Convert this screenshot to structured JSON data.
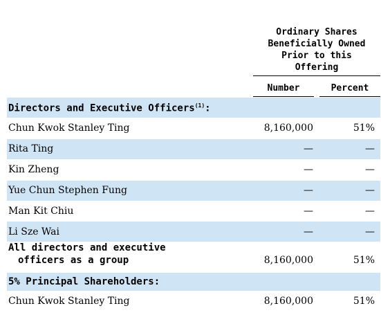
{
  "header": {
    "line1": "Ordinary Shares",
    "line2": "Beneficially Owned",
    "line3": "Prior to this",
    "line4": "Offering"
  },
  "columns": {
    "number": "Number",
    "percent": "Percent"
  },
  "sections": {
    "directors_title": "Directors and Executive Officers",
    "directors_note": "(1)",
    "directors_colon": ":",
    "principal_title": "5% Principal Shareholders:"
  },
  "rows": [
    {
      "name": "Chun Kwok Stanley Ting",
      "number": "8,160,000",
      "percent": "51%"
    },
    {
      "name": "Rita Ting",
      "number": "—",
      "percent": "—"
    },
    {
      "name": "Kin Zheng",
      "number": "—",
      "percent": "—"
    },
    {
      "name": "Yue Chun Stephen Fung",
      "number": "—",
      "percent": "—"
    },
    {
      "name": "Man Kit Chiu",
      "number": "—",
      "percent": "—"
    },
    {
      "name": "Li Sze Wai",
      "number": "—",
      "percent": "—"
    }
  ],
  "group_row": {
    "line1": "All directors and executive",
    "line2": "officers as a group",
    "number": "8,160,000",
    "percent": "51%"
  },
  "principal_rows": [
    {
      "name": "Chun Kwok Stanley Ting",
      "number": "8,160,000",
      "percent": "51%"
    }
  ]
}
